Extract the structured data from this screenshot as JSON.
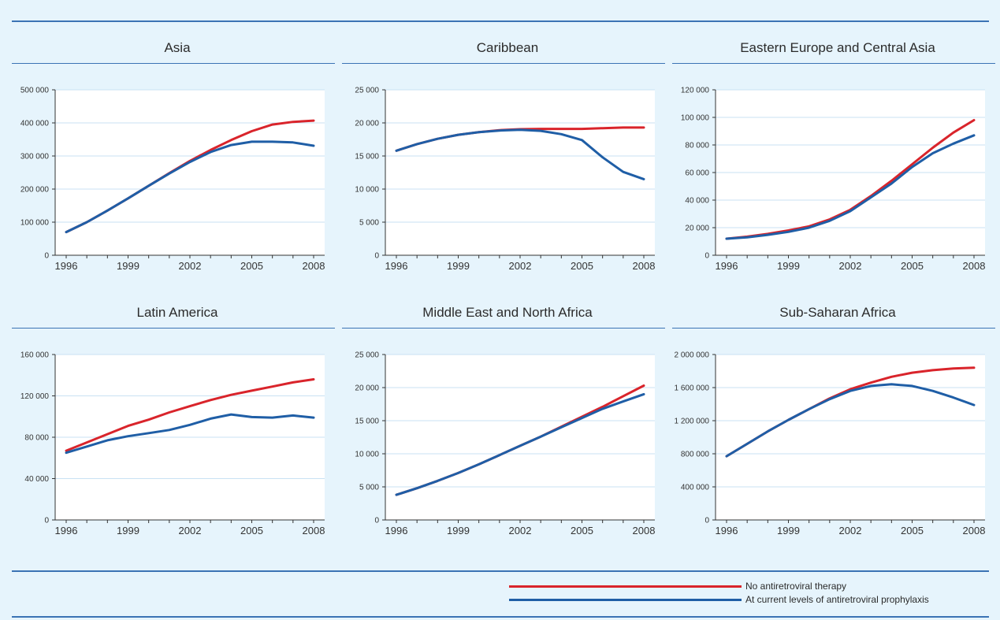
{
  "colors": {
    "no_art": "#d9242b",
    "current_art": "#1f5ea6",
    "plot_bg": "#ffffff",
    "grid": "#c9e2f3",
    "rule": "#3b73b4"
  },
  "legend": {
    "items": [
      {
        "key": "no_art",
        "label": "No antiretroviral therapy"
      },
      {
        "key": "current_art",
        "label": "At current levels of antiretroviral prophylaxis"
      }
    ]
  },
  "chart_data": [
    {
      "type": "line",
      "title": "Asia",
      "x": [
        1996,
        1997,
        1998,
        1999,
        2000,
        2001,
        2002,
        2003,
        2004,
        2005,
        2006,
        2007,
        2008
      ],
      "xticks": [
        "1996",
        "1999",
        "2002",
        "2005",
        "2008"
      ],
      "yticks": [
        "0",
        "100 000",
        "200 000",
        "300 000",
        "400 000",
        "500 000"
      ],
      "ylim": [
        0,
        500000
      ],
      "series": [
        {
          "key": "no_art",
          "name": "No antiretroviral therapy",
          "values": [
            70000,
            100000,
            135000,
            172000,
            210000,
            248000,
            285000,
            318000,
            348000,
            375000,
            395000,
            403000,
            407000
          ]
        },
        {
          "key": "current_art",
          "name": "At current levels of antiretroviral prophylaxis",
          "values": [
            70000,
            100000,
            135000,
            172000,
            210000,
            247000,
            282000,
            312000,
            333000,
            343000,
            343000,
            341000,
            331000
          ]
        }
      ]
    },
    {
      "type": "line",
      "title": "Caribbean",
      "x": [
        1996,
        1997,
        1998,
        1999,
        2000,
        2001,
        2002,
        2003,
        2004,
        2005,
        2006,
        2007,
        2008
      ],
      "xticks": [
        "1996",
        "1999",
        "2002",
        "2005",
        "2008"
      ],
      "yticks": [
        "0",
        "5 000",
        "10 000",
        "15 000",
        "20 000",
        "25 000"
      ],
      "ylim": [
        0,
        25000
      ],
      "series": [
        {
          "key": "no_art",
          "name": "No antiretroviral therapy",
          "values": [
            15800,
            16800,
            17600,
            18200,
            18600,
            18900,
            19050,
            19100,
            19100,
            19100,
            19200,
            19300,
            19300
          ]
        },
        {
          "key": "current_art",
          "name": "At current levels of antiretroviral prophylaxis",
          "values": [
            15800,
            16800,
            17600,
            18200,
            18600,
            18850,
            18950,
            18800,
            18300,
            17400,
            14800,
            12600,
            11500
          ]
        }
      ]
    },
    {
      "type": "line",
      "title": "Eastern Europe and Central Asia",
      "x": [
        1996,
        1997,
        1998,
        1999,
        2000,
        2001,
        2002,
        2003,
        2004,
        2005,
        2006,
        2007,
        2008
      ],
      "xticks": [
        "1996",
        "1999",
        "2002",
        "2005",
        "2008"
      ],
      "yticks": [
        "0",
        "20 000",
        "40 000",
        "60 000",
        "80 000",
        "100 000",
        "120 000"
      ],
      "ylim": [
        0,
        120000
      ],
      "series": [
        {
          "key": "no_art",
          "name": "No antiretroviral therapy",
          "values": [
            12000,
            13500,
            15500,
            18000,
            21000,
            26000,
            33000,
            43000,
            54000,
            66000,
            78000,
            89000,
            98000
          ]
        },
        {
          "key": "current_art",
          "name": "At current levels of antiretroviral prophylaxis",
          "values": [
            12000,
            13000,
            14800,
            17000,
            20000,
            25000,
            32000,
            42000,
            52000,
            64000,
            74000,
            81000,
            87000
          ]
        }
      ]
    },
    {
      "type": "line",
      "title": "Latin America",
      "x": [
        1996,
        1997,
        1998,
        1999,
        2000,
        2001,
        2002,
        2003,
        2004,
        2005,
        2006,
        2007,
        2008
      ],
      "xticks": [
        "1996",
        "1999",
        "2002",
        "2005",
        "2008"
      ],
      "yticks": [
        "0",
        "40 000",
        "80 000",
        "120 000",
        "160 000"
      ],
      "ylim": [
        0,
        160000
      ],
      "series": [
        {
          "key": "no_art",
          "name": "No antiretroviral therapy",
          "values": [
            67000,
            75000,
            83000,
            91000,
            97000,
            104000,
            110000,
            116000,
            121000,
            125000,
            129000,
            133000,
            136000
          ]
        },
        {
          "key": "current_art",
          "name": "At current levels of antiretroviral prophylaxis",
          "values": [
            65000,
            71000,
            77000,
            81000,
            84000,
            87000,
            92000,
            98000,
            102000,
            99500,
            99000,
            101000,
            99000
          ]
        }
      ]
    },
    {
      "type": "line",
      "title": "Middle East and North Africa",
      "x": [
        1996,
        1997,
        1998,
        1999,
        2000,
        2001,
        2002,
        2003,
        2004,
        2005,
        2006,
        2007,
        2008
      ],
      "xticks": [
        "1996",
        "1999",
        "2002",
        "2005",
        "2008"
      ],
      "yticks": [
        "0",
        "5 000",
        "10 000",
        "15 000",
        "20 000",
        "25 000"
      ],
      "ylim": [
        0,
        25000
      ],
      "series": [
        {
          "key": "no_art",
          "name": "No antiretroviral therapy",
          "values": [
            3800,
            4800,
            5900,
            7100,
            8400,
            9800,
            11200,
            12600,
            14100,
            15600,
            17100,
            18700,
            20300
          ]
        },
        {
          "key": "current_art",
          "name": "At current levels of antiretroviral prophylaxis",
          "values": [
            3800,
            4800,
            5900,
            7100,
            8400,
            9800,
            11200,
            12600,
            14000,
            15400,
            16800,
            17900,
            19000
          ]
        }
      ]
    },
    {
      "type": "line",
      "title": "Sub-Saharan Africa",
      "x": [
        1996,
        1997,
        1998,
        1999,
        2000,
        2001,
        2002,
        2003,
        2004,
        2005,
        2006,
        2007,
        2008
      ],
      "xticks": [
        "1996",
        "1999",
        "2002",
        "2005",
        "2008"
      ],
      "yticks": [
        "0",
        "400 000",
        "800 000",
        "1 200 000",
        "1 600 000",
        "2 000 000"
      ],
      "ylim": [
        0,
        2000000
      ],
      "series": [
        {
          "key": "no_art",
          "name": "No antiretroviral therapy",
          "values": [
            770000,
            920000,
            1070000,
            1210000,
            1340000,
            1470000,
            1580000,
            1660000,
            1730000,
            1780000,
            1810000,
            1830000,
            1840000
          ]
        },
        {
          "key": "current_art",
          "name": "At current levels of antiretroviral prophylaxis",
          "values": [
            770000,
            920000,
            1070000,
            1210000,
            1340000,
            1460000,
            1560000,
            1620000,
            1640000,
            1620000,
            1560000,
            1480000,
            1390000
          ]
        }
      ]
    }
  ]
}
